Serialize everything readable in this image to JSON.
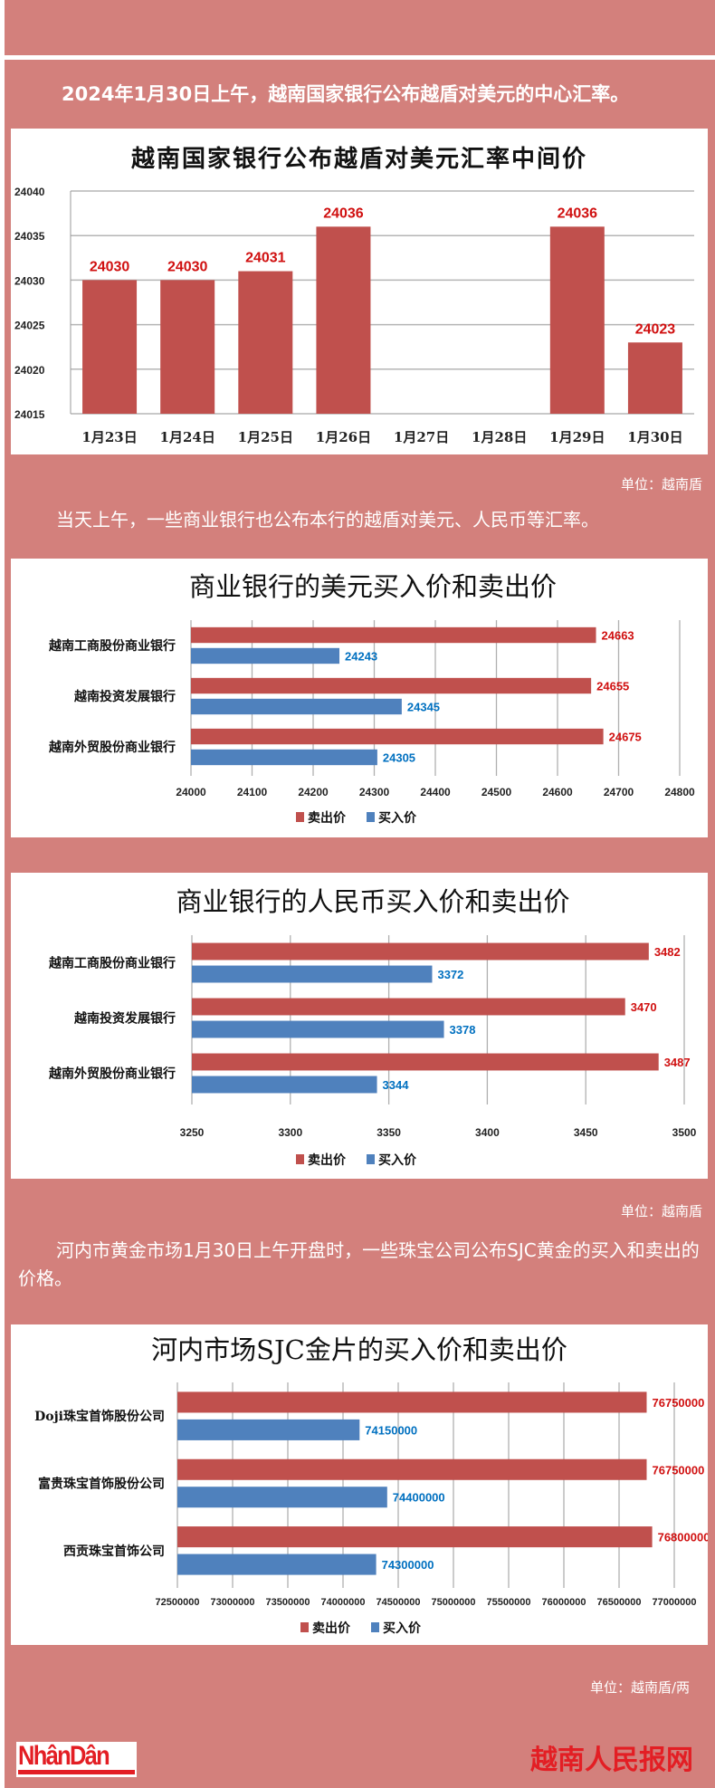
{
  "intro_text": "2024年1月30日上午，越南国家银行公布越盾对美元的中心汇率。",
  "unit_1": "单位：越南盾",
  "text_2": "当天上午，一些商业银行也公布本行的越盾对美元、人民币等汇率。",
  "unit_2": "单位：越南盾",
  "text_3": "河内市黄金市场1月30日上午开盘时，一些珠宝公司公布SJC黄金的买入和卖出的价格。",
  "unit_3": "单位：越南盾/两",
  "logo_text": "NhânDân",
  "brand_text": "越南人民报网",
  "colors": {
    "background": "#d3807c",
    "sell": "#c0504d",
    "buy": "#4f81bd",
    "sell_label": "#d01010",
    "buy_label": "#0070c0"
  },
  "chart_data": [
    {
      "type": "bar",
      "title": "越南国家银行公布越盾对美元汇率中间价",
      "categories": [
        "1月23日",
        "1月24日",
        "1月25日",
        "1月26日",
        "1月27日",
        "1月28日",
        "1月29日",
        "1月30日"
      ],
      "values": [
        24030,
        24030,
        24031,
        24036,
        null,
        null,
        24036,
        24023
      ],
      "data_labels": [
        "24030",
        "24030",
        "24031",
        "24036",
        "",
        "",
        "24036",
        "24023"
      ],
      "ylim": [
        24015,
        24040
      ],
      "yticks": [
        "24015",
        "24020",
        "24025",
        "24030",
        "24035",
        "24040"
      ],
      "grid": true
    },
    {
      "type": "bar",
      "orientation": "horizontal",
      "title": "商业银行的美元买入价和卖出价",
      "categories": [
        "越南工商股份商业银行",
        "越南投资发展银行",
        "越南外贸股份商业银行"
      ],
      "series": [
        {
          "name": "卖出价",
          "values": [
            24663,
            24655,
            24675
          ]
        },
        {
          "name": "买入价",
          "values": [
            24243,
            24345,
            24305
          ]
        }
      ],
      "xlim": [
        24000,
        24800
      ],
      "xticks": [
        "24000",
        "24100",
        "24200",
        "24300",
        "24400",
        "24500",
        "24600",
        "24700",
        "24800"
      ],
      "legend": "bottom",
      "grid": true
    },
    {
      "type": "bar",
      "orientation": "horizontal",
      "title": "商业银行的人民币买入价和卖出价",
      "categories": [
        "越南工商股份商业银行",
        "越南投资发展银行",
        "越南外贸股份商业银行"
      ],
      "series": [
        {
          "name": "卖出价",
          "values": [
            3482,
            3470,
            3487
          ]
        },
        {
          "name": "买入价",
          "values": [
            3372,
            3378,
            3344
          ]
        }
      ],
      "xlim": [
        3250,
        3500
      ],
      "xticks": [
        "3250",
        "3300",
        "3350",
        "3400",
        "3450",
        "3500"
      ],
      "legend": "bottom",
      "grid": true
    },
    {
      "type": "bar",
      "orientation": "horizontal",
      "title": "河内市场SJC金片的买入价和卖出价",
      "categories": [
        "Doji珠宝首饰股份公司",
        "富贵珠宝首饰股份公司",
        "西贡珠宝首饰公司"
      ],
      "series": [
        {
          "name": "卖出价",
          "values": [
            76750000,
            76750000,
            76800000
          ]
        },
        {
          "name": "买入价",
          "values": [
            74150000,
            74400000,
            74300000
          ]
        }
      ],
      "xlim": [
        72500000,
        77000000
      ],
      "xticks": [
        "72500000",
        "73000000",
        "73500000",
        "74000000",
        "74500000",
        "75000000",
        "75500000",
        "76000000",
        "76500000",
        "77000000"
      ],
      "legend": "bottom",
      "grid": true
    }
  ]
}
